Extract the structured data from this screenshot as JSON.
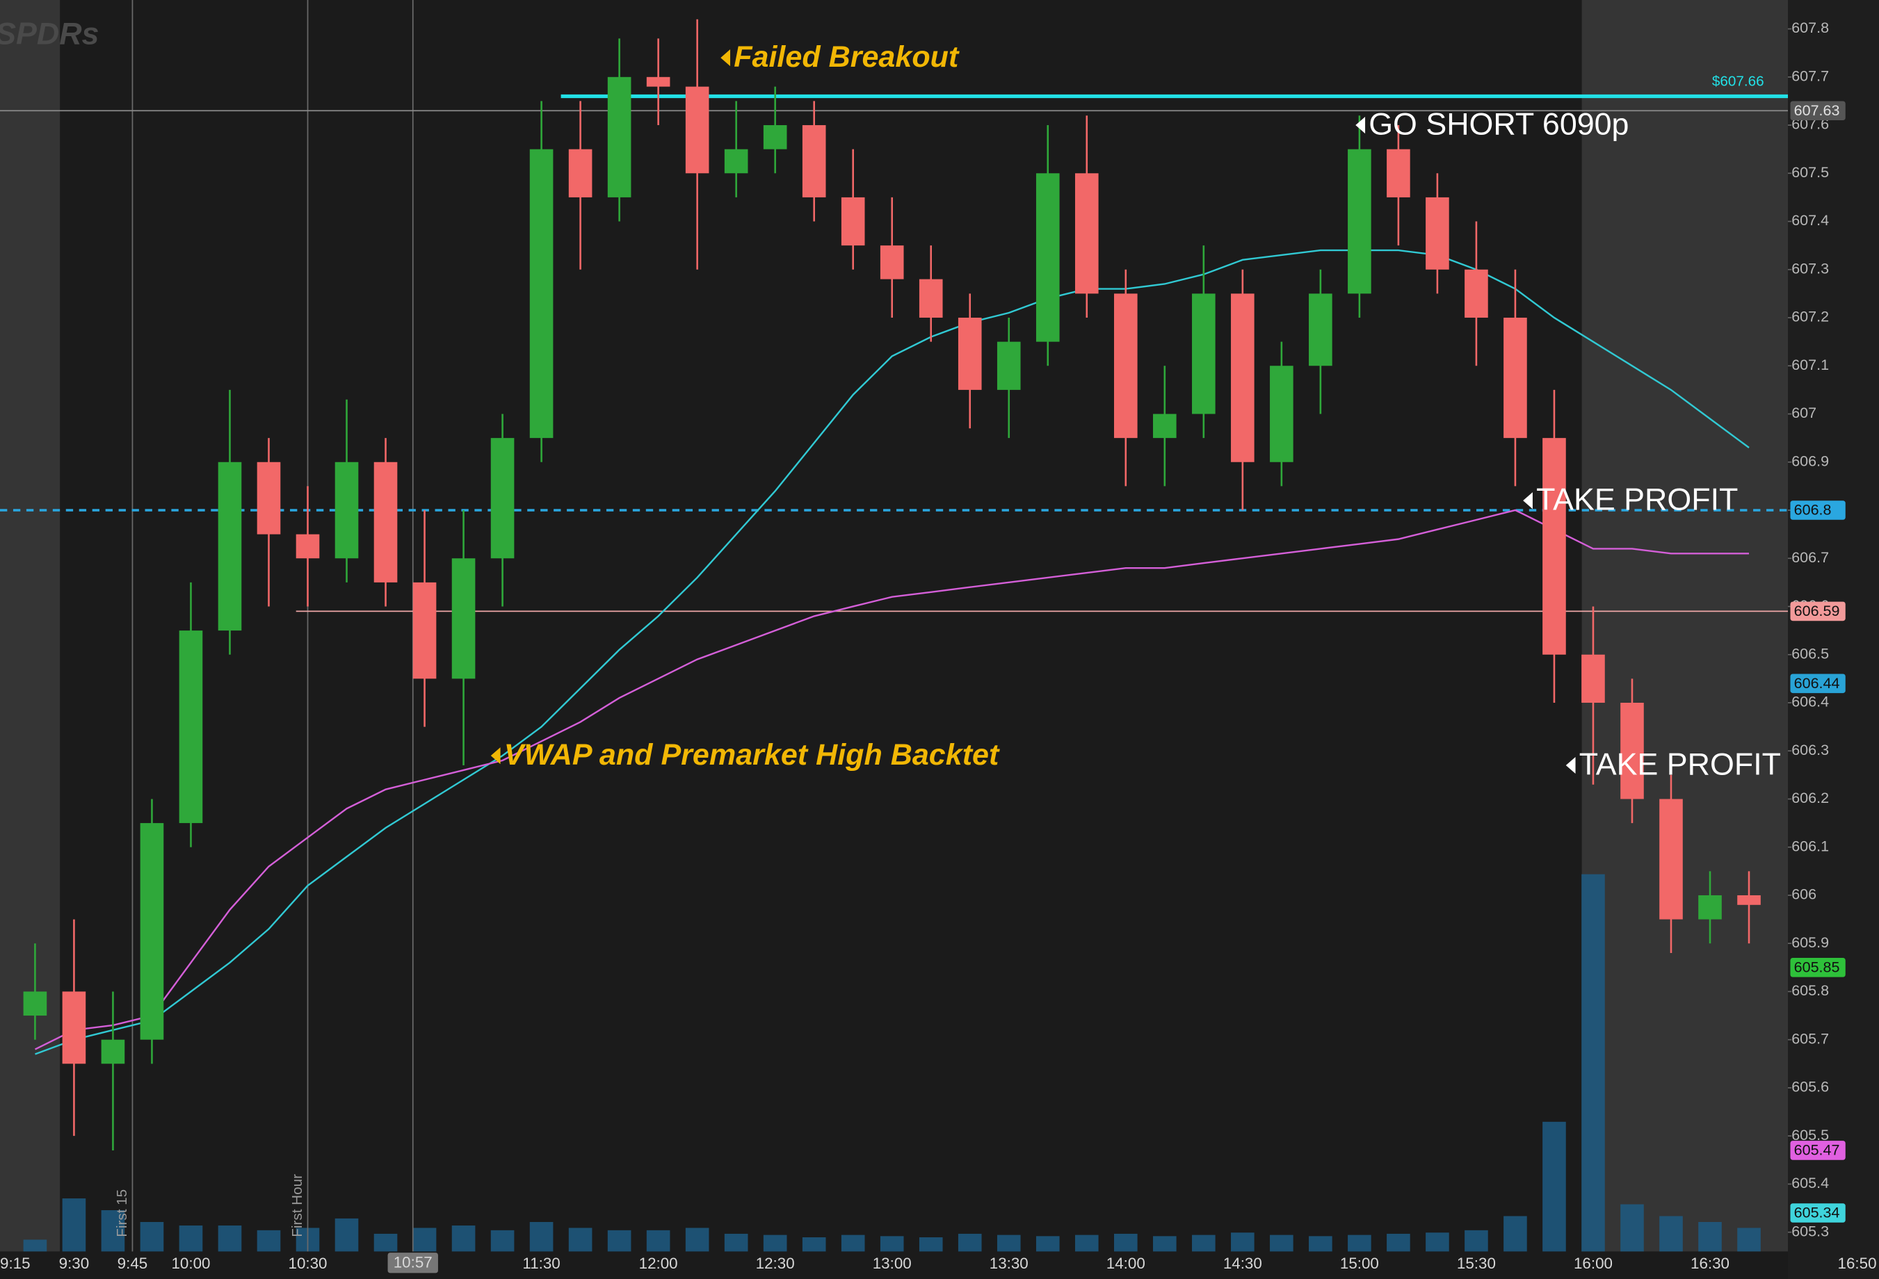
{
  "logo": "SPDRs",
  "chart_data": {
    "type": "candlestick",
    "x": [
      "9:20",
      "9:30",
      "9:40",
      "9:50",
      "10:00",
      "10:10",
      "10:20",
      "10:30",
      "10:40",
      "10:50",
      "11:00",
      "11:10",
      "11:20",
      "11:30",
      "11:40",
      "11:50",
      "12:00",
      "12:10",
      "12:20",
      "12:30",
      "12:40",
      "12:50",
      "13:00",
      "13:10",
      "13:20",
      "13:30",
      "13:40",
      "13:50",
      "14:00",
      "14:10",
      "14:20",
      "14:30",
      "14:40",
      "14:50",
      "15:00",
      "15:10",
      "15:20",
      "15:30",
      "15:40",
      "15:50",
      "16:00",
      "16:10",
      "16:20",
      "16:30",
      "16:40"
    ],
    "open": [
      605.75,
      605.8,
      605.65,
      605.7,
      606.15,
      606.55,
      606.9,
      606.75,
      606.7,
      606.9,
      606.65,
      606.45,
      606.7,
      606.95,
      607.55,
      607.45,
      607.7,
      607.68,
      607.5,
      607.55,
      607.6,
      607.45,
      607.35,
      607.28,
      607.2,
      607.05,
      607.15,
      607.5,
      607.25,
      606.95,
      607.0,
      607.25,
      606.9,
      607.1,
      607.25,
      607.55,
      607.45,
      607.3,
      607.2,
      606.95,
      606.5,
      606.4,
      606.2,
      605.95,
      606.0
    ],
    "high": [
      605.9,
      605.95,
      605.8,
      606.2,
      606.65,
      607.05,
      606.95,
      606.85,
      607.03,
      606.95,
      606.8,
      606.8,
      607.0,
      607.65,
      607.65,
      607.78,
      607.78,
      607.82,
      607.65,
      607.68,
      607.65,
      607.55,
      607.45,
      607.35,
      607.25,
      607.2,
      607.6,
      607.62,
      607.3,
      607.1,
      607.35,
      607.3,
      607.15,
      607.3,
      607.62,
      607.6,
      607.5,
      607.4,
      607.3,
      607.05,
      606.6,
      606.45,
      606.25,
      606.05,
      606.05
    ],
    "low": [
      605.7,
      605.5,
      605.47,
      605.65,
      606.1,
      606.5,
      606.6,
      606.6,
      606.65,
      606.6,
      606.35,
      606.27,
      606.6,
      606.9,
      607.3,
      607.4,
      607.6,
      607.3,
      607.45,
      607.5,
      607.4,
      607.3,
      607.2,
      607.15,
      606.97,
      606.95,
      607.1,
      607.2,
      606.85,
      606.85,
      606.95,
      606.8,
      606.85,
      607.0,
      607.2,
      607.35,
      607.25,
      607.1,
      606.85,
      606.4,
      606.23,
      606.15,
      605.88,
      605.9,
      605.9
    ],
    "close": [
      605.8,
      605.65,
      605.7,
      606.15,
      606.55,
      606.9,
      606.75,
      606.7,
      606.9,
      606.65,
      606.45,
      606.7,
      606.95,
      607.55,
      607.45,
      607.7,
      607.68,
      607.5,
      607.55,
      607.6,
      607.45,
      607.35,
      607.28,
      607.2,
      607.05,
      607.15,
      607.5,
      607.25,
      606.95,
      607.0,
      607.25,
      606.9,
      607.1,
      607.25,
      607.55,
      607.45,
      607.3,
      607.2,
      606.95,
      606.5,
      606.4,
      606.2,
      605.95,
      606.0,
      605.98
    ],
    "volume": [
      10,
      45,
      35,
      25,
      22,
      22,
      18,
      20,
      28,
      15,
      20,
      22,
      18,
      25,
      20,
      18,
      18,
      20,
      15,
      14,
      12,
      14,
      13,
      12,
      15,
      14,
      13,
      14,
      15,
      13,
      14,
      16,
      14,
      13,
      14,
      15,
      16,
      18,
      30,
      110,
      320,
      40,
      30,
      25,
      20
    ],
    "up_color": "#2fa83a",
    "down_color": "#f26868",
    "volume_color": "#1d5b82",
    "lines": [
      {
        "color": "#31c9d3",
        "values": [
          605.67,
          605.7,
          605.72,
          605.74,
          605.8,
          605.86,
          605.93,
          606.02,
          606.08,
          606.14,
          606.19,
          606.24,
          606.29,
          606.35,
          606.43,
          606.51,
          606.58,
          606.66,
          606.75,
          606.84,
          606.94,
          607.04,
          607.12,
          607.16,
          607.19,
          607.21,
          607.24,
          607.26,
          607.26,
          607.27,
          607.29,
          607.32,
          607.33,
          607.34,
          607.34,
          607.34,
          607.33,
          607.3,
          607.26,
          607.2,
          607.15,
          607.1,
          607.05,
          606.99,
          606.93
        ]
      },
      {
        "color": "#d45fd8",
        "values": [
          605.68,
          605.72,
          605.73,
          605.75,
          605.86,
          605.97,
          606.06,
          606.12,
          606.18,
          606.22,
          606.24,
          606.26,
          606.28,
          606.32,
          606.36,
          606.41,
          606.45,
          606.49,
          606.52,
          606.55,
          606.58,
          606.6,
          606.62,
          606.63,
          606.64,
          606.65,
          606.66,
          606.67,
          606.68,
          606.68,
          606.69,
          606.7,
          606.71,
          606.72,
          606.73,
          606.74,
          606.76,
          606.78,
          606.8,
          606.76,
          606.72,
          606.72,
          606.71,
          606.71,
          606.71
        ]
      }
    ],
    "levels": [
      {
        "value": 607.63,
        "color": "#8a8a8a",
        "style": "thin"
      },
      {
        "value": 607.66,
        "from": "11:35",
        "color": "#22e0e6",
        "style": "thick",
        "label": {
          "value": 607.66,
          "label": "$607.66"
        }
      },
      {
        "value": 606.8,
        "color": "#2aa7e0",
        "style": "dashed"
      },
      {
        "value": 606.59,
        "from": "10:27",
        "color": "#f0a8a8",
        "style": "thin"
      }
    ],
    "price_badges": [
      {
        "value": 607.63,
        "color": "#555555",
        "text_color": "#e0e0e0"
      },
      {
        "value": 606.8,
        "color": "#2aa7e0",
        "text_color": "#111111"
      },
      {
        "value": 606.59,
        "color": "#f29a9a",
        "text_color": "#111111"
      },
      {
        "value": 606.44,
        "color": "#29a3d6",
        "text_color": "#111111"
      },
      {
        "value": 605.85,
        "color": "#2ec13a",
        "text_color": "#111111"
      },
      {
        "value": 605.47,
        "color": "#e060e0",
        "text_color": "#111111"
      },
      {
        "value": 605.34,
        "color": "#3fd4dc",
        "text_color": "#111111"
      }
    ],
    "xlim": [
      "9:11",
      "16:50"
    ],
    "ylim": [
      605.26,
      607.86
    ],
    "yticks": [
      607.8,
      607.7,
      607.6,
      607.5,
      607.4,
      607.3,
      607.2,
      607.1,
      607,
      606.9,
      606.8,
      606.7,
      606.6,
      606.5,
      606.4,
      606.3,
      606.2,
      606.1,
      606,
      605.9,
      605.8,
      605.7,
      605.6,
      605.5,
      605.4,
      605.3
    ],
    "xticks": [
      "9:15",
      "9:30",
      "9:45",
      "10:00",
      "10:30",
      "11:30",
      "12:00",
      "12:30",
      "13:00",
      "13:30",
      "14:00",
      "14:30",
      "15:00",
      "15:30",
      "16:00",
      "16:30",
      "16:50"
    ],
    "markers": [
      {
        "x": "9:45",
        "label": "First 15"
      },
      {
        "x": "10:30",
        "label": "First Hour"
      },
      {
        "x": "10:57"
      }
    ],
    "annotations": [
      {
        "text": "Failed Breakout",
        "x": "12:16",
        "y": 607.74,
        "style": "highlight"
      },
      {
        "text": "VWAP and Premarket High Backtet",
        "x": "11:17",
        "y": 606.29,
        "style": "highlight"
      },
      {
        "text": "GO SHORT 6090p",
        "x": "14:59",
        "y": 607.6,
        "style": "plain"
      },
      {
        "text": "TAKE PROFIT",
        "x": "15:42",
        "y": 606.82,
        "style": "plain"
      },
      {
        "text": "TAKE PROFIT",
        "x": "15:53",
        "y": 606.27,
        "style": "plain"
      }
    ]
  }
}
